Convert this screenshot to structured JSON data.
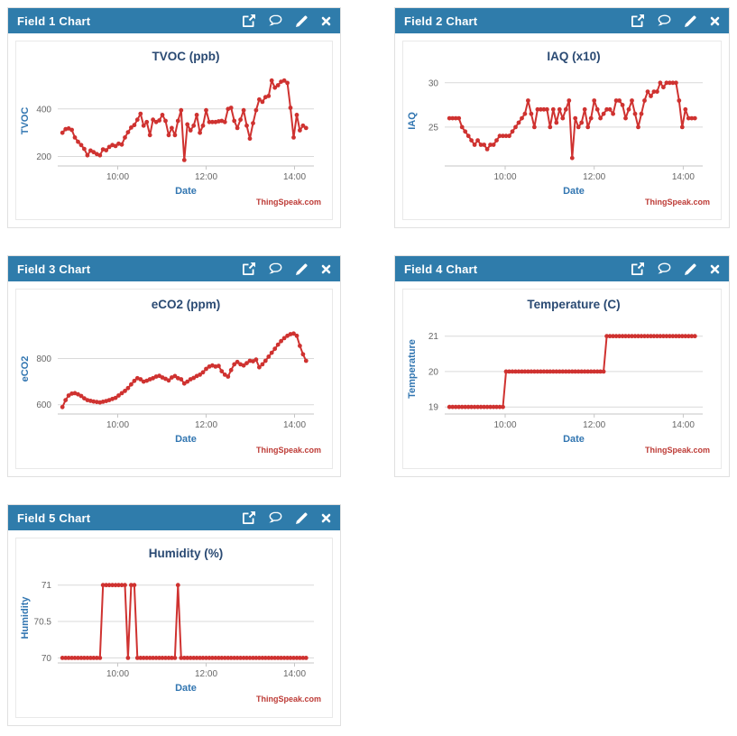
{
  "attribution": "ThingSpeak.com",
  "colors": {
    "header_bg": "#2f7cab",
    "header_text": "#ffffff",
    "panel_border": "#e0e0e0",
    "chart_border": "#e9e9e9",
    "chart_bg": "#ffffff",
    "title_text": "#2a4a73",
    "axis_label_text": "#3276b1",
    "tick_text": "#666666",
    "grid_line": "#d9d9d9",
    "axis_line": "#c6c6c6",
    "series": "#cf3230",
    "attribution_text": "#bd3b36"
  },
  "header_icons": [
    "open-external-icon",
    "comment-icon",
    "edit-icon",
    "close-icon"
  ],
  "panels": [
    {
      "header": "Field 1 Chart"
    },
    {
      "header": "Field 2 Chart"
    },
    {
      "header": "Field 3 Chart"
    },
    {
      "header": "Field 4 Chart"
    },
    {
      "header": "Field 5 Chart"
    }
  ],
  "x_layout": {
    "domain": [
      -1.5,
      80.5
    ],
    "tick_idx": [
      17.7,
      46,
      74.3
    ]
  },
  "chart_data": [
    {
      "type": "line",
      "panel": "Field 1 Chart",
      "title": "TVOC (ppb)",
      "xlabel": "Date",
      "ylabel": "TVOC",
      "x_ticks": [
        "10:00",
        "12:00",
        "14:00"
      ],
      "x_time_range": [
        "08:45",
        "14:20"
      ],
      "yticks": [
        200,
        400
      ],
      "ylim": [
        160,
        540
      ],
      "grid": true,
      "marker": "circle",
      "values": [
        300,
        315,
        318,
        312,
        280,
        262,
        248,
        232,
        205,
        225,
        218,
        210,
        205,
        230,
        226,
        240,
        248,
        244,
        254,
        250,
        280,
        302,
        322,
        332,
        355,
        380,
        330,
        345,
        290,
        355,
        345,
        352,
        375,
        350,
        290,
        320,
        290,
        350,
        395,
        185,
        335,
        310,
        330,
        375,
        300,
        330,
        395,
        345,
        345,
        345,
        348,
        350,
        345,
        400,
        405,
        350,
        320,
        355,
        395,
        330,
        275,
        340,
        395,
        440,
        430,
        450,
        455,
        520,
        490,
        500,
        515,
        520,
        510,
        405,
        280,
        375,
        310,
        330,
        320
      ]
    },
    {
      "type": "line",
      "panel": "Field 2 Chart",
      "title": "IAQ (x10)",
      "xlabel": "Date",
      "ylabel": "IAQ",
      "x_ticks": [
        "10:00",
        "12:00",
        "14:00"
      ],
      "x_time_range": [
        "08:45",
        "14:20"
      ],
      "yticks": [
        25,
        30
      ],
      "ylim": [
        20.6,
        30.8
      ],
      "grid": true,
      "marker": "circle",
      "values": [
        26,
        26,
        26,
        26,
        25,
        24.5,
        24,
        23.5,
        23,
        23.5,
        23,
        23,
        22.5,
        23,
        23,
        23.5,
        24,
        24,
        24,
        24,
        24.5,
        25,
        25.5,
        26,
        26.5,
        28,
        26.5,
        25,
        27,
        27,
        27,
        27,
        25,
        27,
        25.5,
        27,
        26,
        27,
        28,
        21.5,
        26,
        25,
        25.5,
        27,
        25,
        26,
        28,
        27,
        26,
        26.5,
        27,
        27,
        26.5,
        28,
        28,
        27.5,
        26,
        27,
        28,
        26.5,
        25,
        26.5,
        28,
        29,
        28.5,
        29,
        29,
        30,
        29.5,
        30,
        30,
        30,
        30,
        28,
        25,
        27,
        26,
        26,
        26
      ]
    },
    {
      "type": "line",
      "panel": "Field 3 Chart",
      "title": "eCO2 (ppm)",
      "xlabel": "Date",
      "ylabel": "eCO2",
      "x_ticks": [
        "10:00",
        "12:00",
        "14:00"
      ],
      "x_time_range": [
        "08:45",
        "14:20"
      ],
      "yticks": [
        600,
        800
      ],
      "ylim": [
        560,
        950
      ],
      "grid": true,
      "marker": "circle",
      "values": [
        590,
        620,
        640,
        648,
        650,
        645,
        638,
        628,
        620,
        617,
        614,
        612,
        610,
        613,
        616,
        620,
        625,
        630,
        640,
        650,
        660,
        672,
        688,
        703,
        715,
        710,
        700,
        704,
        710,
        715,
        722,
        725,
        718,
        712,
        705,
        718,
        724,
        715,
        710,
        692,
        700,
        710,
        716,
        724,
        730,
        740,
        755,
        765,
        770,
        765,
        768,
        745,
        730,
        722,
        750,
        775,
        785,
        775,
        770,
        780,
        790,
        788,
        795,
        762,
        775,
        790,
        808,
        825,
        842,
        860,
        875,
        888,
        898,
        905,
        908,
        898,
        855,
        818,
        790
      ]
    },
    {
      "type": "line",
      "panel": "Field 4 Chart",
      "title": "Temperature (C)",
      "xlabel": "Date",
      "ylabel": "Temperature",
      "x_ticks": [
        "10:00",
        "12:00",
        "14:00"
      ],
      "x_time_range": [
        "08:45",
        "14:20"
      ],
      "yticks": [
        19,
        20,
        21
      ],
      "ylim": [
        18.8,
        21.35
      ],
      "grid": true,
      "marker": "circle",
      "values": [
        19,
        19,
        19,
        19,
        19,
        19,
        19,
        19,
        19,
        19,
        19,
        19,
        19,
        19,
        19,
        19,
        19,
        19,
        20,
        20,
        20,
        20,
        20,
        20,
        20,
        20,
        20,
        20,
        20,
        20,
        20,
        20,
        20,
        20,
        20,
        20,
        20,
        20,
        20,
        20,
        20,
        20,
        20,
        20,
        20,
        20,
        20,
        20,
        20,
        20,
        21,
        21,
        21,
        21,
        21,
        21,
        21,
        21,
        21,
        21,
        21,
        21,
        21,
        21,
        21,
        21,
        21,
        21,
        21,
        21,
        21,
        21,
        21,
        21,
        21,
        21,
        21,
        21,
        21
      ]
    },
    {
      "type": "line",
      "panel": "Field 5 Chart",
      "title": "Humidity (%)",
      "xlabel": "Date",
      "ylabel": "Humidity",
      "x_ticks": [
        "10:00",
        "12:00",
        "14:00"
      ],
      "x_time_range": [
        "08:45",
        "14:20"
      ],
      "yticks": [
        70,
        70.5,
        71
      ],
      "ylim": [
        69.93,
        71.17
      ],
      "grid": true,
      "marker": "circle",
      "values": [
        70,
        70,
        70,
        70,
        70,
        70,
        70,
        70,
        70,
        70,
        70,
        70,
        70,
        71,
        71,
        71,
        71,
        71,
        71,
        71,
        71,
        70,
        71,
        71,
        70,
        70,
        70,
        70,
        70,
        70,
        70,
        70,
        70,
        70,
        70,
        70,
        70,
        71,
        70,
        70,
        70,
        70,
        70,
        70,
        70,
        70,
        70,
        70,
        70,
        70,
        70,
        70,
        70,
        70,
        70,
        70,
        70,
        70,
        70,
        70,
        70,
        70,
        70,
        70,
        70,
        70,
        70,
        70,
        70,
        70,
        70,
        70,
        70,
        70,
        70,
        70,
        70,
        70,
        70
      ]
    }
  ]
}
